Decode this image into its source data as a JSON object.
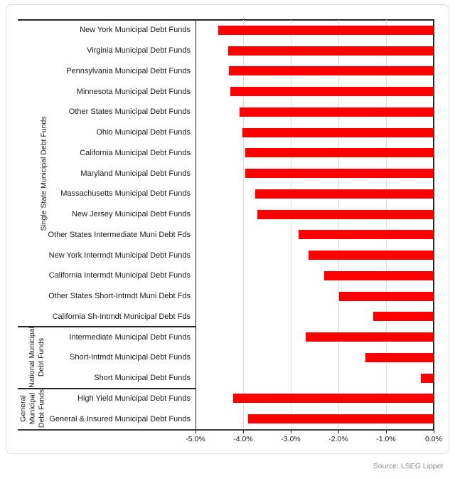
{
  "source_note": "Source: LSEG Lipper",
  "colors": {
    "bar": "#ff0000",
    "gridline": "#dcdcdc",
    "axis": "#262626",
    "card_border": "#dadada",
    "source_text": "#8c8c8c"
  },
  "chart_data": {
    "type": "bar",
    "orientation": "horizontal",
    "unit": "percent",
    "xlim": [
      -5.0,
      0.0
    ],
    "grid": "vertical-on",
    "x_ticks": [
      {
        "value": -5.0,
        "label": "-5.0%"
      },
      {
        "value": -4.0,
        "label": "-4.0%"
      },
      {
        "value": -3.0,
        "label": "-3.0%"
      },
      {
        "value": -2.0,
        "label": "-2.0%"
      },
      {
        "value": -1.0,
        "label": "-1.0%"
      },
      {
        "value": 0.0,
        "label": "0.0%"
      }
    ],
    "groups": [
      {
        "label": "Single State Municipal Debt Funds",
        "label_lines": [
          "Single State Municipal Debt Funds"
        ],
        "rows": [
          {
            "label": "New York Municipal Debt Funds",
            "value": -4.52
          },
          {
            "label": "Virginia Municipal Debt Funds",
            "value": -4.32
          },
          {
            "label": "Pennsylvania Municipal Debt Funds",
            "value": -4.3
          },
          {
            "label": "Minnesota Municipal Debt Funds",
            "value": -4.27
          },
          {
            "label": "Other States Municipal Debt Funds",
            "value": -4.07
          },
          {
            "label": "Ohio Municipal Debt Funds",
            "value": -4.02
          },
          {
            "label": "California Municipal Debt Funds",
            "value": -3.96
          },
          {
            "label": "Maryland Municipal Debt Funds",
            "value": -3.95
          },
          {
            "label": "Massachusetts Municipal Debt Funds",
            "value": -3.74
          },
          {
            "label": "New Jersey Municipal Debt Funds",
            "value": -3.7
          },
          {
            "label": "Other States Intermediate Muni Debt Fds",
            "value": -2.83
          },
          {
            "label": "New York Intermdt Municipal Debt Funds",
            "value": -2.63
          },
          {
            "label": "California Intermdt Municipal Debt Funds",
            "value": -2.3
          },
          {
            "label": "Other States Short-Intmdt Muni Debt Fds",
            "value": -1.98
          },
          {
            "label": "California Sh-Intmdt Municipal Debt Fds",
            "value": -1.27
          }
        ]
      },
      {
        "label": "National Municipal Debt Funds",
        "label_lines": [
          "National Municipal",
          "Debt Funds"
        ],
        "rows": [
          {
            "label": "Intermediate Municipal Debt Funds",
            "value": -2.69
          },
          {
            "label": "Short-Intmdt Municipal Debt Funds",
            "value": -1.44
          },
          {
            "label": "Short Municipal Debt Funds",
            "value": -0.27
          }
        ]
      },
      {
        "label": "General Municipal Debt Funds",
        "label_lines": [
          "General",
          "Municipal",
          "Debt Funds"
        ],
        "rows": [
          {
            "label": "High Yield Municipal Debt Funds",
            "value": -4.21
          },
          {
            "label": "General & Insured Municipal Debt Funds",
            "value": -3.89
          }
        ]
      }
    ]
  }
}
